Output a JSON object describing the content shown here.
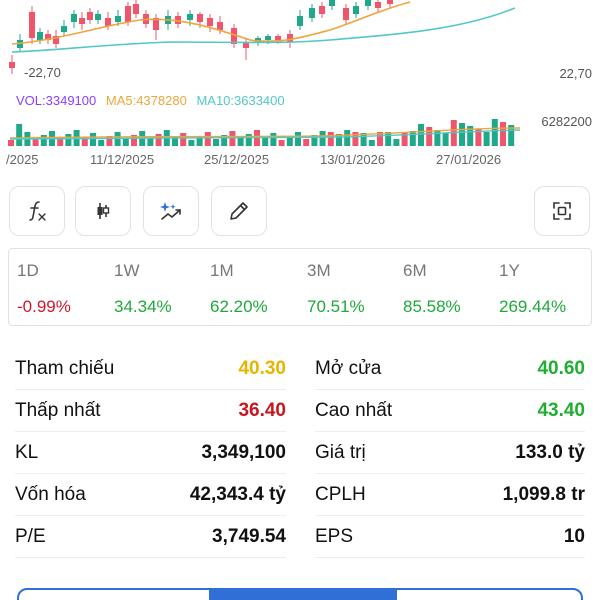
{
  "chart": {
    "low_price_marker": "-22,70",
    "right_axis_price": "22,70",
    "right_axis_volume": "6282200",
    "legend": {
      "vol": "VOL:3349100",
      "ma5": "MA5:4378280",
      "ma10": "MA10:3633400"
    },
    "dates": [
      "/2025",
      "11/12/2025",
      "25/12/2025",
      "13/01/2026",
      "27/01/2026"
    ],
    "colors": {
      "up": "#1fa889",
      "down": "#f0566b",
      "ma5": "#f0a43a",
      "ma10": "#52c7c7"
    }
  },
  "chart_data": {
    "type": "candlestick",
    "dates": [
      "/2025",
      "11/12/2025",
      "25/12/2025",
      "13/01/2026",
      "27/01/2026"
    ],
    "series": [
      {
        "name": "VOL",
        "last": 3349100
      },
      {
        "name": "MA5",
        "last": 4378280
      },
      {
        "name": "MA10",
        "last": 3633400
      }
    ],
    "price_marker": 22.7,
    "volume_axis_max": 6282200
  },
  "toolbar": {
    "buttons": [
      "function-icon",
      "candlestick-icon",
      "sparkle-icon",
      "pencil-icon",
      "fullscreen-icon"
    ]
  },
  "periods": [
    {
      "label": "1D",
      "value": "-0.99%",
      "trend": "down"
    },
    {
      "label": "1W",
      "value": "34.34%",
      "trend": "up"
    },
    {
      "label": "1M",
      "value": "62.20%",
      "trend": "up"
    },
    {
      "label": "3M",
      "value": "70.51%",
      "trend": "up"
    },
    {
      "label": "6M",
      "value": "85.58%",
      "trend": "up"
    },
    {
      "label": "1Y",
      "value": "269.44%",
      "trend": "up"
    }
  ],
  "stats": {
    "left": [
      {
        "label": "Tham chiếu",
        "value": "40.30",
        "color": "yellow"
      },
      {
        "label": "Thấp nhất",
        "value": "36.40",
        "color": "red"
      },
      {
        "label": "KL",
        "value": "3,349,100",
        "color": "black"
      },
      {
        "label": "Vốn hóa",
        "value": "42,343.4 tỷ",
        "color": "black"
      },
      {
        "label": "P/E",
        "value": "3,749.54",
        "color": "black"
      }
    ],
    "right": [
      {
        "label": "Mở cửa",
        "value": "40.60",
        "color": "green"
      },
      {
        "label": "Cao nhất",
        "value": "43.40",
        "color": "green"
      },
      {
        "label": "Giá trị",
        "value": "133.0 tỷ",
        "color": "black"
      },
      {
        "label": "CPLH",
        "value": "1,099.8 tr",
        "color": "black"
      },
      {
        "label": "EPS",
        "value": "10",
        "color": "black"
      }
    ]
  }
}
